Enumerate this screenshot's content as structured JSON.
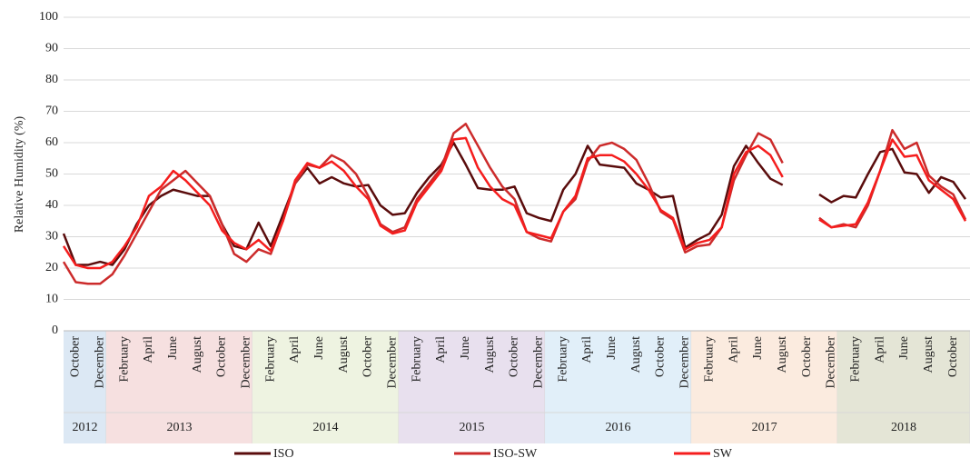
{
  "chart_data": {
    "type": "line",
    "y_label": "Relative Humidity (%)",
    "ylim": [
      0,
      100
    ],
    "yticks": [
      0,
      10,
      20,
      30,
      40,
      50,
      60,
      70,
      80,
      90,
      100
    ],
    "grid": true,
    "categories": [
      null,
      "October",
      null,
      "December",
      null,
      "February",
      null,
      "April",
      null,
      "June",
      null,
      "August",
      null,
      "October",
      null,
      "December",
      null,
      "February",
      null,
      "April",
      null,
      "June",
      null,
      "August",
      null,
      "October",
      null,
      "December",
      null,
      "February",
      null,
      "April",
      null,
      "June",
      null,
      "August",
      null,
      "October",
      null,
      "December",
      null,
      "February",
      null,
      "April",
      null,
      "June",
      null,
      "August",
      null,
      "October",
      null,
      "December",
      null,
      "February",
      null,
      "April",
      null,
      "June",
      null,
      "August",
      null,
      "October",
      null,
      "December",
      null,
      "February",
      null,
      "April",
      null,
      "June",
      null,
      "August",
      null,
      "October",
      null
    ],
    "years": [
      {
        "label": "2012",
        "color": "#dce8f4"
      },
      {
        "label": "2013",
        "color": "#f6e0e0"
      },
      {
        "label": "2014",
        "color": "#eef3e1"
      },
      {
        "label": "2015",
        "color": "#e8e0ee"
      },
      {
        "label": "2016",
        "color": "#e1eff9"
      },
      {
        "label": "2017",
        "color": "#fbebdf"
      },
      {
        "label": "2018",
        "color": "#e4e5d6"
      }
    ],
    "series": [
      {
        "name": "ISO",
        "color": "#5a0c0c",
        "values": [
          31,
          21,
          21,
          22,
          21,
          26,
          34,
          40,
          43,
          45,
          44,
          43,
          43,
          34,
          27,
          26,
          34.5,
          27,
          37,
          47,
          52,
          47,
          49,
          47,
          46,
          46.5,
          40,
          37,
          37.5,
          44,
          49,
          53,
          60,
          53,
          45.5,
          45,
          45,
          46,
          37.5,
          36,
          35,
          45,
          50,
          59,
          53,
          52.5,
          52,
          47,
          45,
          42.5,
          43,
          26.5,
          29,
          31,
          37,
          52.5,
          59,
          53.5,
          48.5,
          46.5,
          null,
          null,
          43.5,
          41,
          43,
          42.5,
          50,
          57,
          58,
          50.5,
          50,
          44,
          49,
          47.5,
          42
        ]
      },
      {
        "name": "ISO-SW",
        "color": "#cc2b2b",
        "values": [
          22,
          15.5,
          15,
          15,
          18,
          24,
          31,
          38,
          45,
          48,
          51,
          47,
          43,
          34,
          24.5,
          22,
          26,
          24.5,
          35,
          47,
          53,
          52,
          56,
          54,
          50,
          43,
          34,
          31.5,
          33,
          42,
          47,
          52,
          63,
          66,
          59,
          52,
          46,
          42,
          31.5,
          29.5,
          28.5,
          38,
          42,
          54,
          59,
          60,
          58,
          54.5,
          47,
          38,
          35.5,
          25,
          27,
          27.5,
          33,
          48,
          56,
          63,
          61,
          53.5,
          null,
          null,
          36,
          33,
          34,
          33,
          40,
          51,
          64,
          58,
          60,
          49.5,
          46,
          43.5,
          35.5
        ]
      },
      {
        "name": "SW",
        "color": "#f51d1d",
        "values": [
          27,
          21,
          20,
          20,
          22,
          27,
          33,
          43,
          46,
          51,
          48,
          44,
          40,
          32,
          28,
          26,
          29,
          25.5,
          35,
          48,
          53.5,
          52,
          54,
          51,
          46,
          42,
          33.5,
          31,
          32,
          41,
          46,
          51,
          61,
          61.5,
          52,
          46,
          42,
          40,
          31.5,
          30.5,
          29.5,
          38,
          43,
          55,
          56,
          56,
          54,
          50,
          45,
          38.5,
          36,
          26,
          28,
          29,
          33,
          50,
          57,
          59,
          56,
          49,
          null,
          null,
          35.5,
          33,
          33.5,
          34,
          41,
          51,
          61,
          55.5,
          56,
          48,
          45,
          42,
          35
        ]
      }
    ]
  }
}
